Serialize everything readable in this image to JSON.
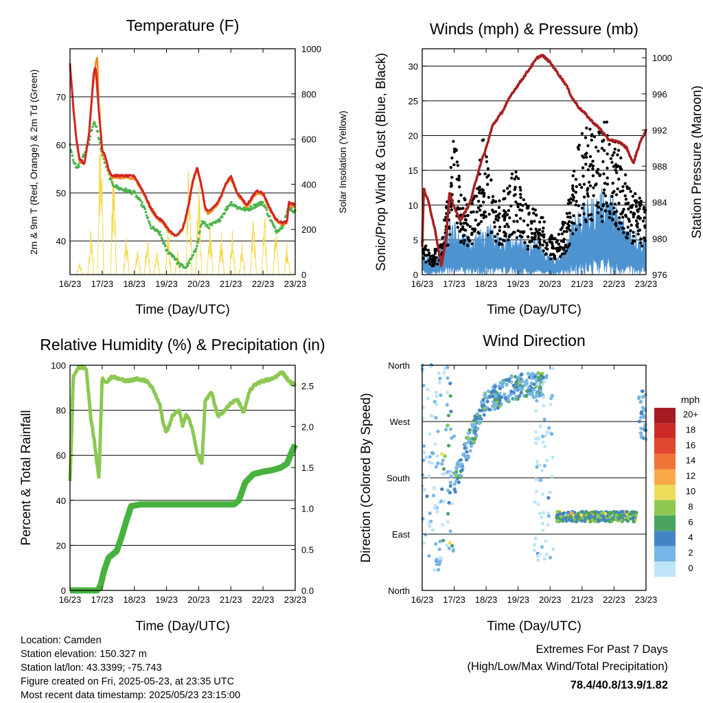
{
  "panels": {
    "temperature": {
      "title": "Temperature (F)",
      "xlabel": "Time (Day/UTC)",
      "ylabel_left": "2m & 9m T (Red, Orange) & 2m Td (Green)",
      "ylabel_right": "Solar Insolation (Yellow)"
    },
    "winds": {
      "title": "Winds (mph) & Pressure (mb)",
      "xlabel": "Time (Day/UTC)",
      "ylabel_left": "Sonic/Prop Wind & Gust (Blue, Black)",
      "ylabel_right": "Station Pressure (Maroon)"
    },
    "humidity": {
      "title": "Relative Humidity (%) & Precipitation (in)",
      "xlabel": "Time (Day/UTC)",
      "ylabel_left": "Percent & Total Rainfall"
    },
    "direction": {
      "title": "Wind Direction",
      "xlabel": "Time (Day/UTC)",
      "ylabel_left": "Direction (Colored By Speed)",
      "colorbar_title": "mph"
    }
  },
  "footer": {
    "location": "Location: Camden",
    "elevation": "Station elevation: 150.327 m",
    "latlon": "Station lat/lon: 43.3399; -75.743",
    "created": "Figure created on Fri, 2025-05-23, at 23:35 UTC",
    "recent": "Most recent data timestamp: 2025/05/23 23:15:00",
    "extremes_title": "Extremes For Past 7 Days",
    "extremes_sub": "(High/Low/Max Wind/Total Precipitation)",
    "extremes_value": "78.4/40.8/13.9/1.82",
    "extremes_color": "#c8222b"
  },
  "chart_data": [
    {
      "type": "line",
      "title": "Temperature (F)",
      "xlabel": "Time (Day/UTC)",
      "ylabel": "2m & 9m T (Red, Orange) & 2m Td (Green)",
      "ylabel_right": "Solar Insolation (Yellow)",
      "x_ticks": [
        "16/23",
        "17/23",
        "18/23",
        "19/23",
        "20/23",
        "21/23",
        "22/23",
        "23/23"
      ],
      "xlim": [
        0,
        7
      ],
      "ylim": [
        33,
        80
      ],
      "y_ticks": [
        40,
        50,
        60,
        70
      ],
      "ylim_right": [
        0,
        1000
      ],
      "y_ticks_right": [
        0,
        200,
        400,
        600,
        800,
        1000
      ],
      "grid": true,
      "series": [
        {
          "name": "2m T",
          "color": "#d42424",
          "axis": "left",
          "x": [
            0,
            0.1,
            0.2,
            0.3,
            0.45,
            0.6,
            0.7,
            0.75,
            0.8,
            0.9,
            1.0,
            1.1,
            1.2,
            1.3,
            1.5,
            2.0,
            2.3,
            2.5,
            2.7,
            2.9,
            3.1,
            3.3,
            3.5,
            3.6,
            3.7,
            3.8,
            3.95,
            4.1,
            4.2,
            4.3,
            4.6,
            4.85,
            5.0,
            5.2,
            5.5,
            5.8,
            6.0,
            6.2,
            6.4,
            6.6,
            6.75,
            6.8,
            7.0
          ],
          "y": [
            76.8,
            68,
            61,
            57,
            56,
            63,
            72,
            75.5,
            76,
            67,
            59,
            57.5,
            55,
            53.6,
            53.6,
            53.5,
            50,
            47,
            45,
            44,
            42,
            41,
            42.5,
            45,
            48,
            52,
            55.5,
            51,
            47,
            46,
            48,
            52,
            53.5,
            50,
            47.5,
            50.5,
            50,
            47,
            44.5,
            43.8,
            44,
            48,
            47.5
          ]
        },
        {
          "name": "9m T",
          "color": "#ef8a1e",
          "axis": "left",
          "x": [
            0,
            0.1,
            0.2,
            0.3,
            0.45,
            0.6,
            0.7,
            0.75,
            0.8,
            0.85,
            0.9,
            1.0,
            1.1,
            1.2,
            1.3,
            1.5,
            2.0,
            2.3,
            2.5,
            2.7,
            2.9,
            3.1,
            3.3,
            3.5,
            3.6,
            3.7,
            3.8,
            3.95,
            4.1,
            4.2,
            4.3,
            4.6,
            4.85,
            5.0,
            5.2,
            5.5,
            5.8,
            6.0,
            6.2,
            6.4,
            6.6,
            6.75,
            6.8,
            7.0
          ],
          "y": [
            76.5,
            67.5,
            60.5,
            56.5,
            56,
            62.5,
            71,
            74,
            77,
            78.4,
            66,
            58.5,
            57,
            54.5,
            53.2,
            53.2,
            53,
            49.6,
            46.6,
            44.6,
            43.6,
            41.6,
            41,
            42.2,
            44.6,
            47.6,
            51.6,
            55,
            50.6,
            46.6,
            45.6,
            47.6,
            51.6,
            53,
            49.6,
            47,
            50,
            49.6,
            46.6,
            44.2,
            43.4,
            43.8,
            47.6,
            47
          ]
        },
        {
          "name": "2m Td",
          "color": "#4bb44b",
          "axis": "left",
          "x": [
            0,
            0.1,
            0.2,
            0.3,
            0.45,
            0.6,
            0.7,
            0.75,
            0.85,
            1.0,
            1.1,
            1.3,
            1.5,
            2.0,
            2.3,
            2.5,
            2.8,
            3.0,
            3.2,
            3.4,
            3.6,
            3.75,
            3.9,
            4.1,
            4.3,
            4.6,
            4.85,
            5.0,
            5.2,
            5.5,
            5.8,
            6.0,
            6.2,
            6.4,
            6.6,
            6.8,
            7.0
          ],
          "y": [
            60,
            57,
            55,
            56,
            58,
            61,
            64,
            64.5,
            63,
            58,
            56,
            52,
            51,
            50,
            47,
            43,
            41.5,
            38,
            37,
            35,
            34.5,
            36,
            38,
            44,
            43,
            44,
            46.5,
            48,
            47,
            46.5,
            47.5,
            48,
            45,
            42,
            43,
            47,
            46
          ]
        },
        {
          "name": "Solar Insolation",
          "color": "#f7d84a",
          "axis": "right",
          "peaks_x": [
            0.3,
            0.65,
            0.95,
            1.35,
            1.75,
            2.1,
            2.4,
            2.7,
            3.05,
            3.35,
            3.7,
            4.0,
            4.35,
            4.7,
            5.05,
            5.35,
            5.7,
            6.05,
            6.4,
            6.75
          ],
          "peaks_y": [
            60,
            220,
            950,
            560,
            200,
            140,
            210,
            130,
            230,
            120,
            650,
            490,
            270,
            200,
            250,
            170,
            330,
            290,
            250,
            160
          ]
        }
      ]
    },
    {
      "type": "scatter",
      "title": "Winds (mph) & Pressure (mb)",
      "xlabel": "Time (Day/UTC)",
      "ylabel": "Sonic/Prop Wind & Gust (Blue, Black)",
      "ylabel_right": "Station Pressure (Maroon)",
      "x_ticks": [
        "16/23",
        "17/23",
        "18/23",
        "19/23",
        "20/23",
        "21/23",
        "22/23",
        "23/23"
      ],
      "xlim": [
        0,
        7
      ],
      "ylim": [
        0,
        32.5
      ],
      "y_ticks": [
        0,
        5,
        10,
        15,
        20,
        25,
        30
      ],
      "ylim_right": [
        976,
        1001
      ],
      "y_ticks_right": [
        976,
        980,
        984,
        988,
        992,
        996,
        1000
      ],
      "grid": true,
      "series": [
        {
          "name": "Sonic/Prop Wind",
          "color": "#4d93d0",
          "axis": "left",
          "envelope_x": [
            0,
            0.3,
            0.6,
            0.9,
            1.2,
            1.5,
            1.8,
            2.1,
            2.4,
            2.7,
            3.0,
            3.3,
            3.6,
            3.9,
            4.2,
            4.5,
            4.7,
            4.9,
            5.2,
            5.5,
            5.8,
            6.1,
            6.4,
            6.7,
            7.0
          ],
          "envelope_y": [
            3,
            2,
            4,
            8,
            6,
            5,
            6,
            7,
            5,
            6,
            6,
            4,
            5,
            3,
            2,
            4,
            9,
            9,
            10,
            11,
            12,
            9,
            7,
            6,
            5
          ]
        },
        {
          "name": "Gust",
          "color": "#000000",
          "axis": "left",
          "envelope_x": [
            0,
            0.3,
            0.6,
            0.85,
            1.0,
            1.2,
            1.5,
            1.7,
            1.9,
            2.1,
            2.4,
            2.7,
            2.9,
            3.1,
            3.3,
            3.6,
            3.9,
            4.2,
            4.5,
            4.8,
            5.0,
            5.2,
            5.4,
            5.6,
            5.8,
            6.0,
            6.2,
            6.4,
            6.7,
            7.0
          ],
          "envelope_y": [
            5,
            3,
            5,
            13,
            22,
            12,
            10,
            15,
            20,
            15,
            11,
            13,
            16,
            12,
            10,
            10,
            7,
            5,
            9,
            17,
            21,
            22,
            20,
            21,
            23,
            20,
            17,
            14,
            12,
            10
          ]
        },
        {
          "name": "Station Pressure",
          "color": "#a82022",
          "axis": "right",
          "x": [
            0,
            0.05,
            0.2,
            0.4,
            0.6,
            0.75,
            0.85,
            0.95,
            1.05,
            1.2,
            1.5,
            1.8,
            2.0,
            2.2,
            2.5,
            2.8,
            3.1,
            3.4,
            3.6,
            3.75,
            4.0,
            4.2,
            4.5,
            4.7,
            4.9,
            5.1,
            5.3,
            5.45,
            5.6,
            5.8,
            6.0,
            6.2,
            6.4,
            6.6,
            6.8,
            7.0
          ],
          "y": [
            979,
            985.5,
            984,
            981,
            977,
            980,
            985,
            984,
            983,
            982,
            984,
            988,
            990,
            992.5,
            994,
            996,
            997.5,
            999,
            1000,
            1000.3,
            999.5,
            998.5,
            997,
            995.5,
            994.5,
            993.8,
            993,
            992.5,
            992,
            991,
            990.8,
            990.6,
            990,
            988.3,
            990.5,
            992
          ]
        }
      ]
    },
    {
      "type": "line",
      "title": "Relative Humidity (%) & Precipitation (in)",
      "xlabel": "Time (Day/UTC)",
      "ylabel": "Percent & Total Rainfall",
      "x_ticks": [
        "16/23",
        "17/23",
        "18/23",
        "19/23",
        "20/23",
        "21/23",
        "22/23",
        "23/23"
      ],
      "xlim": [
        0,
        7
      ],
      "ylim": [
        0,
        100
      ],
      "y_ticks": [
        0,
        20,
        40,
        60,
        80,
        100
      ],
      "ylim_right": [
        0,
        2.75
      ],
      "y_ticks_right": [
        0.0,
        0.5,
        1.0,
        1.5,
        2.0,
        2.5
      ],
      "grid": true,
      "series": [
        {
          "name": "Relative Humidity",
          "color": "#8cc853",
          "axis": "left",
          "x": [
            0,
            0.05,
            0.1,
            0.25,
            0.5,
            0.6,
            0.65,
            0.75,
            0.85,
            0.9,
            1.0,
            1.1,
            1.3,
            1.5,
            1.8,
            2.1,
            2.4,
            2.6,
            2.8,
            2.9,
            3.0,
            3.2,
            3.4,
            3.5,
            3.6,
            3.7,
            3.8,
            3.95,
            4.1,
            4.2,
            4.4,
            4.6,
            4.8,
            5.0,
            5.2,
            5.4,
            5.6,
            5.8,
            6.0,
            6.3,
            6.6,
            6.8,
            7.0
          ],
          "y": [
            48,
            70,
            95,
            99,
            99,
            84,
            76,
            67,
            55,
            50,
            95,
            92,
            95,
            94,
            93,
            94,
            93,
            89,
            82,
            74,
            70,
            78,
            80,
            73,
            78,
            76,
            72,
            61,
            56,
            84,
            88,
            77,
            80,
            83,
            85,
            79,
            89,
            92,
            93,
            94,
            97,
            93,
            91
          ]
        },
        {
          "name": "Total Rainfall",
          "color": "#47b23e",
          "axis": "right",
          "x": [
            0,
            0.3,
            0.6,
            0.85,
            0.95,
            1.05,
            1.2,
            1.45,
            1.6,
            1.75,
            1.9,
            2.2,
            2.6,
            3.0,
            3.6,
            4.2,
            4.8,
            5.1,
            5.25,
            5.45,
            5.7,
            6.0,
            6.3,
            6.55,
            6.75,
            6.9,
            7.0
          ],
          "y": [
            0,
            0,
            0,
            0,
            0.06,
            0.23,
            0.4,
            0.48,
            0.65,
            0.85,
            1.03,
            1.05,
            1.05,
            1.05,
            1.05,
            1.05,
            1.05,
            1.05,
            1.1,
            1.32,
            1.42,
            1.45,
            1.47,
            1.5,
            1.55,
            1.7,
            1.78
          ]
        }
      ]
    },
    {
      "type": "scatter",
      "title": "Wind Direction",
      "xlabel": "Time (Day/UTC)",
      "ylabel": "Direction (Colored By Speed)",
      "x_ticks": [
        "16/23",
        "17/23",
        "18/23",
        "19/23",
        "20/23",
        "21/23",
        "22/23",
        "23/23"
      ],
      "xlim": [
        0,
        7
      ],
      "ylim": [
        0,
        360
      ],
      "y_ticks": [
        "North",
        "East",
        "South",
        "West",
        "North"
      ],
      "y_tick_values": [
        0,
        90,
        180,
        270,
        360
      ],
      "grid": true,
      "colorbar": {
        "title": "mph",
        "labels": [
          "20+",
          "18",
          "16",
          "14",
          "12",
          "10",
          "8",
          "6",
          "4",
          "2",
          "0"
        ],
        "colors": [
          "#a41c22",
          "#cc2a27",
          "#e14630",
          "#f07437",
          "#f9a84a",
          "#eedc5a",
          "#8ec852",
          "#4aa45d",
          "#4584c4",
          "#77b6e6",
          "#bfe4f8"
        ]
      },
      "clusters": [
        {
          "x": [
            0,
            0.6
          ],
          "dir_center": 200,
          "dir_spread": 170,
          "speed": [
            0,
            4
          ]
        },
        {
          "x": [
            0.6,
            1.0
          ],
          "dir_center": 210,
          "dir_spread": 150,
          "speed": [
            0,
            12
          ]
        },
        {
          "x": [
            1.0,
            3.8
          ],
          "dir_trend": [
            170,
            300,
            325,
            330
          ],
          "dir_spread": 20,
          "speed": [
            2,
            9
          ]
        },
        {
          "x": [
            3.5,
            4.1
          ],
          "dir_center": 200,
          "dir_spread": 160,
          "speed": [
            0,
            4
          ]
        },
        {
          "x": [
            4.2,
            6.7
          ],
          "dir_center": 118,
          "dir_spread": 8,
          "speed": [
            3,
            14
          ]
        },
        {
          "x": [
            6.75,
            7.0
          ],
          "dir_center": 280,
          "dir_spread": 40,
          "speed": [
            2,
            5
          ]
        }
      ]
    }
  ]
}
